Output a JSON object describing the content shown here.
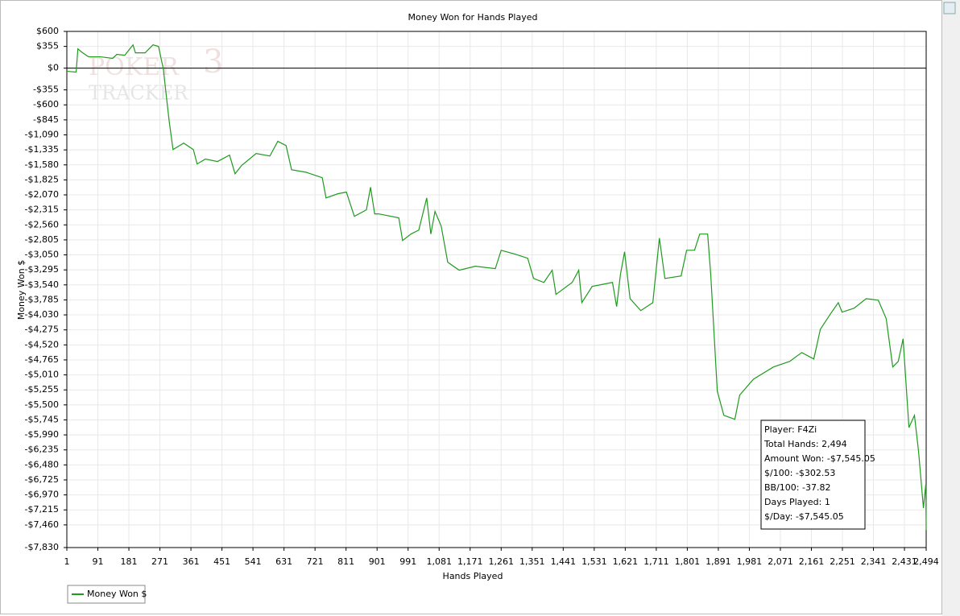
{
  "chart_data": {
    "type": "line",
    "title": "Money Won for Hands Played",
    "x_label": "Hands Played",
    "y_label": "Money Won $",
    "watermark": {
      "word1": "POKER",
      "word2": "TRACKER",
      "mark": "3"
    },
    "x": [
      1,
      28,
      33,
      47,
      64,
      99,
      134,
      146,
      169,
      193,
      200,
      228,
      251,
      267,
      281,
      290,
      298,
      309,
      340,
      368,
      379,
      403,
      438,
      473,
      489,
      508,
      550,
      590,
      613,
      637,
      653,
      695,
      742,
      753,
      788,
      812,
      835,
      870,
      882,
      894,
      905,
      964,
      975,
      999,
      1022,
      1045,
      1057,
      1069,
      1087,
      1106,
      1139,
      1186,
      1244,
      1261,
      1303,
      1338,
      1355,
      1385,
      1409,
      1420,
      1467,
      1486,
      1495,
      1525,
      1584,
      1596,
      1607,
      1619,
      1635,
      1666,
      1701,
      1720,
      1736,
      1783,
      1799,
      1822,
      1837,
      1860,
      1869,
      1888,
      1907,
      1939,
      1953,
      1993,
      2051,
      2098,
      2133,
      2168,
      2187,
      2215,
      2239,
      2250,
      2285,
      2320,
      2355,
      2378,
      2397,
      2413,
      2427,
      2444,
      2460,
      2472,
      2486,
      2493,
      2494
    ],
    "series": [
      {
        "name": "Money Won $",
        "color": "#1f9a1f",
        "values": [
          -50,
          -65,
          315,
          250,
          185,
          185,
          160,
          225,
          210,
          380,
          250,
          250,
          380,
          355,
          -15,
          -475,
          -870,
          -1330,
          -1225,
          -1330,
          -1565,
          -1485,
          -1525,
          -1420,
          -1725,
          -1590,
          -1395,
          -1435,
          -1195,
          -1265,
          -1660,
          -1700,
          -1790,
          -2120,
          -2050,
          -2025,
          -2420,
          -2315,
          -1945,
          -2380,
          -2380,
          -2445,
          -2815,
          -2710,
          -2645,
          -2120,
          -2710,
          -2340,
          -2580,
          -3170,
          -3300,
          -3235,
          -3275,
          -2975,
          -3040,
          -3105,
          -3435,
          -3500,
          -3300,
          -3695,
          -3500,
          -3300,
          -3830,
          -3565,
          -3500,
          -3895,
          -3370,
          -3000,
          -3765,
          -3960,
          -3830,
          -2775,
          -3435,
          -3395,
          -2975,
          -2975,
          -2710,
          -2710,
          -3370,
          -5275,
          -5670,
          -5735,
          -5340,
          -5080,
          -4880,
          -4790,
          -4645,
          -4750,
          -4265,
          -4025,
          -3830,
          -3985,
          -3920,
          -3765,
          -3790,
          -4090,
          -4880,
          -4790,
          -4420,
          -5870,
          -5670,
          -6265,
          -7185,
          -6790,
          -7545
        ]
      }
    ],
    "xlim": [
      1,
      2494
    ],
    "ylim": [
      -7830,
      600
    ],
    "xticks": [
      1,
      91,
      181,
      271,
      361,
      451,
      541,
      631,
      721,
      811,
      901,
      991,
      {
        "value": 1081,
        "label": "1,081"
      },
      {
        "value": 1171,
        "label": "1,171"
      },
      {
        "value": 1261,
        "label": "1,261"
      },
      {
        "value": 1351,
        "label": "1,351"
      },
      {
        "value": 1441,
        "label": "1,441"
      },
      {
        "value": 1531,
        "label": "1,531"
      },
      {
        "value": 1621,
        "label": "1,621"
      },
      {
        "value": 1711,
        "label": "1,711"
      },
      {
        "value": 1801,
        "label": "1,801"
      },
      {
        "value": 1891,
        "label": "1,891"
      },
      {
        "value": 1981,
        "label": "1,981"
      },
      {
        "value": 2071,
        "label": "2,071"
      },
      {
        "value": 2161,
        "label": "2,161"
      },
      {
        "value": 2251,
        "label": "2,251"
      },
      {
        "value": 2341,
        "label": "2,341"
      },
      {
        "value": 2431,
        "label": "2,431"
      },
      {
        "value": 2494,
        "label": "2,494"
      }
    ],
    "yticks": [
      {
        "value": 600,
        "label": "$600"
      },
      {
        "value": 355,
        "label": "$355"
      },
      {
        "value": 0,
        "label": "$0"
      },
      {
        "value": -355,
        "label": "-$355"
      },
      {
        "value": -600,
        "label": "-$600"
      },
      {
        "value": -845,
        "label": "-$845"
      },
      {
        "value": -1090,
        "label": "-$1,090"
      },
      {
        "value": -1335,
        "label": "-$1,335"
      },
      {
        "value": -1580,
        "label": "-$1,580"
      },
      {
        "value": -1825,
        "label": "-$1,825"
      },
      {
        "value": -2070,
        "label": "-$2,070"
      },
      {
        "value": -2315,
        "label": "-$2,315"
      },
      {
        "value": -2560,
        "label": "-$2,560"
      },
      {
        "value": -2805,
        "label": "-$2,805"
      },
      {
        "value": -3050,
        "label": "-$3,050"
      },
      {
        "value": -3295,
        "label": "-$3,295"
      },
      {
        "value": -3540,
        "label": "-$3,540"
      },
      {
        "value": -3785,
        "label": "-$3,785"
      },
      {
        "value": -4030,
        "label": "-$4,030"
      },
      {
        "value": -4275,
        "label": "-$4,275"
      },
      {
        "value": -4520,
        "label": "-$4,520"
      },
      {
        "value": -4765,
        "label": "-$4,765"
      },
      {
        "value": -5010,
        "label": "-$5,010"
      },
      {
        "value": -5255,
        "label": "-$5,255"
      },
      {
        "value": -5500,
        "label": "-$5,500"
      },
      {
        "value": -5745,
        "label": "-$5,745"
      },
      {
        "value": -5990,
        "label": "-$5,990"
      },
      {
        "value": -6235,
        "label": "-$6,235"
      },
      {
        "value": -6480,
        "label": "-$6,480"
      },
      {
        "value": -6725,
        "label": "-$6,725"
      },
      {
        "value": -6970,
        "label": "-$6,970"
      },
      {
        "value": -7215,
        "label": "-$7,215"
      },
      {
        "value": -7460,
        "label": "-$7,460"
      },
      {
        "value": -7830,
        "label": "-$7,830"
      }
    ],
    "grid": true,
    "legend": "bottom-left",
    "annotations": [
      "Player: F4Zi",
      "Total Hands: 2,494",
      "Amount Won: -$7,545.05",
      "$/100: -$302.53",
      "BB/100: -37.82",
      "Days Played: 1",
      "$/Day: -$7,545.05"
    ]
  }
}
